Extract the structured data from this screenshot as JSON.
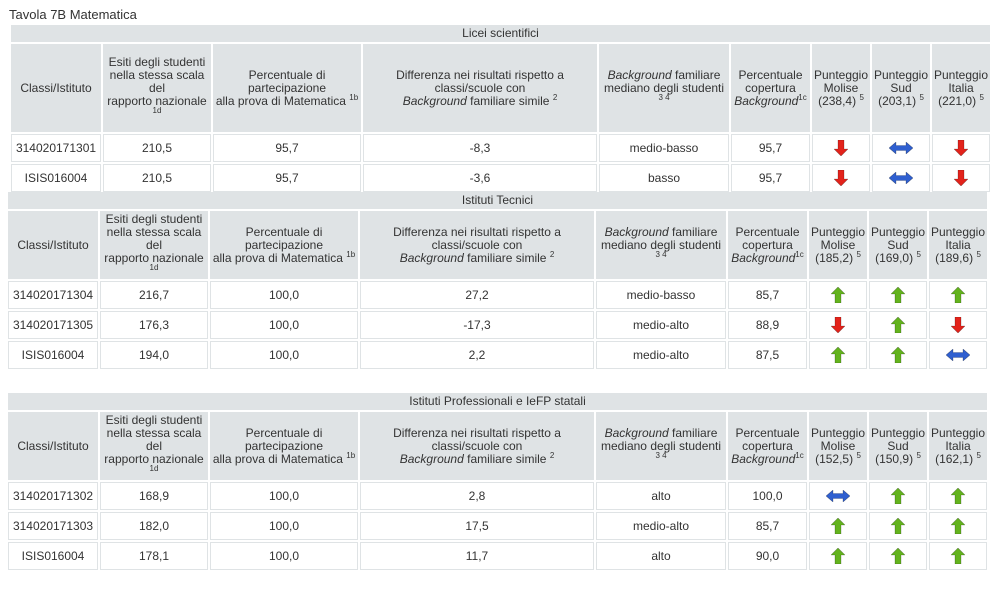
{
  "page_title": "Tavola 7B Matematica",
  "headers": {
    "classi": "Classi/Istituto",
    "esiti": [
      "Esiti degli studenti",
      "nella stessa scala",
      "del",
      "rapporto nazionale"
    ],
    "esiti_sup": "1d",
    "partecipazione": [
      "Percentuale di",
      "partecipazione",
      "alla prova di Matematica"
    ],
    "partecipazione_sup": "1b",
    "differenza": [
      "Differenza nei risultati rispetto a",
      "classi/scuole con"
    ],
    "differenza_italic": "Background",
    "differenza_tail": "familiare simile",
    "differenza_sup": "2",
    "background_italic": "Background",
    "background_tail": "familiare",
    "background_line2": "mediano degli studenti",
    "background_sup": "3 4",
    "copertura": [
      "Percentuale",
      "copertura"
    ],
    "copertura_italic": "Background",
    "copertura_sup": "1c",
    "punteggio": "Punteggio",
    "molise": "Molise",
    "sud": "Sud",
    "italia": "Italia",
    "area_sup": "5"
  },
  "sections": [
    {
      "title": "Licei scientifici",
      "scores": {
        "molise": "(238,4)",
        "sud": "(203,1)",
        "italia": "(221,0)"
      },
      "rows": [
        {
          "classe": "314020171301",
          "esiti": "210,5",
          "partecipazione": "95,7",
          "differenza": "-8,3",
          "background": "medio-basso",
          "copertura": "95,7",
          "molise": "down",
          "sud": "equal",
          "italia": "down"
        },
        {
          "classe": "ISIS016004",
          "esiti": "210,5",
          "partecipazione": "95,7",
          "differenza": "-3,6",
          "background": "basso",
          "copertura": "95,7",
          "molise": "down",
          "sud": "equal",
          "italia": "down"
        }
      ]
    },
    {
      "title": "Istituti Tecnici",
      "scores": {
        "molise": "(185,2)",
        "sud": "(169,0)",
        "italia": "(189,6)"
      },
      "rows": [
        {
          "classe": "314020171304",
          "esiti": "216,7",
          "partecipazione": "100,0",
          "differenza": "27,2",
          "background": "medio-basso",
          "copertura": "85,7",
          "molise": "up",
          "sud": "up",
          "italia": "up"
        },
        {
          "classe": "314020171305",
          "esiti": "176,3",
          "partecipazione": "100,0",
          "differenza": "-17,3",
          "background": "medio-alto",
          "copertura": "88,9",
          "molise": "down",
          "sud": "up",
          "italia": "down"
        },
        {
          "classe": "ISIS016004",
          "esiti": "194,0",
          "partecipazione": "100,0",
          "differenza": "2,2",
          "background": "medio-alto",
          "copertura": "87,5",
          "molise": "up",
          "sud": "up",
          "italia": "equal"
        }
      ]
    },
    {
      "title": "Istituti Professionali e IeFP statali",
      "scores": {
        "molise": "(152,5)",
        "sud": "(150,9)",
        "italia": "(162,1)"
      },
      "rows": [
        {
          "classe": "314020171302",
          "esiti": "168,9",
          "partecipazione": "100,0",
          "differenza": "2,8",
          "background": "alto",
          "copertura": "100,0",
          "molise": "equal",
          "sud": "up",
          "italia": "up"
        },
        {
          "classe": "314020171303",
          "esiti": "182,0",
          "partecipazione": "100,0",
          "differenza": "17,5",
          "background": "medio-alto",
          "copertura": "85,7",
          "molise": "up",
          "sud": "up",
          "italia": "up"
        },
        {
          "classe": "ISIS016004",
          "esiti": "178,1",
          "partecipazione": "100,0",
          "differenza": "11,7",
          "background": "alto",
          "copertura": "90,0",
          "molise": "up",
          "sud": "up",
          "italia": "up"
        }
      ]
    }
  ],
  "arrow_icons": {
    "up": "arrow-up-green-icon",
    "down": "arrow-down-red-icon",
    "equal": "arrow-left-right-blue-icon"
  },
  "colors": {
    "header_bg": "#dfe3e5",
    "up": "#63b31d",
    "down": "#e3231b",
    "equal": "#2f5fd0"
  }
}
